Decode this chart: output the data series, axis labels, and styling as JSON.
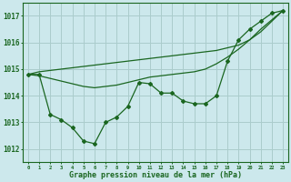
{
  "title": "Graphe pression niveau de la mer (hPa)",
  "bg_color": "#cce8ec",
  "grid_color": "#aacccc",
  "line_color": "#1a6620",
  "x_ticks": [
    0,
    1,
    2,
    3,
    4,
    5,
    6,
    7,
    8,
    9,
    10,
    11,
    12,
    13,
    14,
    15,
    16,
    17,
    18,
    19,
    20,
    21,
    22,
    23
  ],
  "ylim": [
    1011.5,
    1017.5
  ],
  "yticks": [
    1012,
    1013,
    1014,
    1015,
    1016,
    1017
  ],
  "series_jagged": [
    1014.8,
    1014.8,
    1013.3,
    1013.1,
    1012.8,
    1012.3,
    1012.2,
    1013.0,
    1013.2,
    1013.6,
    1014.5,
    1014.45,
    1014.1,
    1014.1,
    1013.8,
    1013.7,
    1013.7,
    1014.0,
    1015.3,
    1016.1,
    1016.5,
    1016.8,
    1017.1,
    1017.2
  ],
  "series_smooth_upper": [
    1014.8,
    1014.75,
    1014.65,
    1014.55,
    1014.45,
    1014.35,
    1014.3,
    1014.35,
    1014.4,
    1014.5,
    1014.6,
    1014.7,
    1014.75,
    1014.8,
    1014.85,
    1014.9,
    1015.0,
    1015.2,
    1015.45,
    1015.75,
    1016.1,
    1016.5,
    1016.85,
    1017.2
  ],
  "series_straight": [
    1014.8,
    1014.9,
    1014.95,
    1015.0,
    1015.05,
    1015.1,
    1015.15,
    1015.2,
    1015.25,
    1015.3,
    1015.35,
    1015.4,
    1015.45,
    1015.5,
    1015.55,
    1015.6,
    1015.65,
    1015.7,
    1015.8,
    1015.9,
    1016.1,
    1016.4,
    1016.8,
    1017.2
  ]
}
